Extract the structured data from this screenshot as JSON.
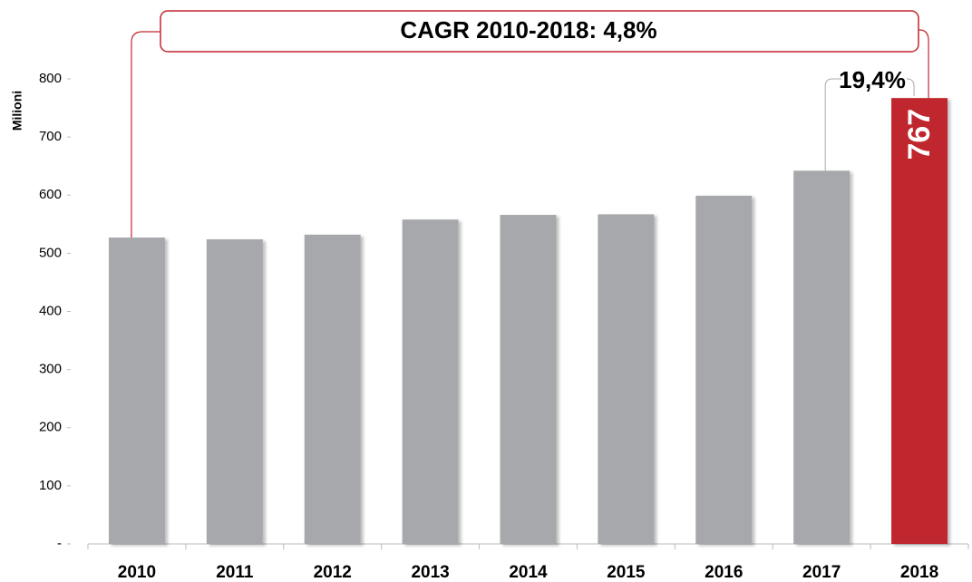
{
  "chart_data": {
    "type": "bar",
    "y_axis_label": "Milioni",
    "categories": [
      "2010",
      "2011",
      "2012",
      "2013",
      "2014",
      "2015",
      "2016",
      "2017",
      "2018"
    ],
    "values": [
      527,
      524,
      532,
      558,
      566,
      567,
      599,
      642,
      767
    ],
    "value_labels": [
      null,
      null,
      null,
      null,
      null,
      null,
      null,
      null,
      "767"
    ],
    "colors": [
      "#a6a8ab",
      "#a6a8ab",
      "#a6a8ab",
      "#a6a8ab",
      "#a6a8ab",
      "#a6a8ab",
      "#a6a8ab",
      "#a6a8ab",
      "#c0272d"
    ],
    "ylim": [
      0,
      800
    ],
    "yticks": [
      {
        "value": 0,
        "label": "-"
      },
      100,
      200,
      300,
      400,
      500,
      600,
      700,
      800
    ],
    "grid": false,
    "annotations": [
      {
        "text": "CAGR 2010-2018: 4,8%"
      },
      {
        "text": "19,4%"
      }
    ]
  }
}
